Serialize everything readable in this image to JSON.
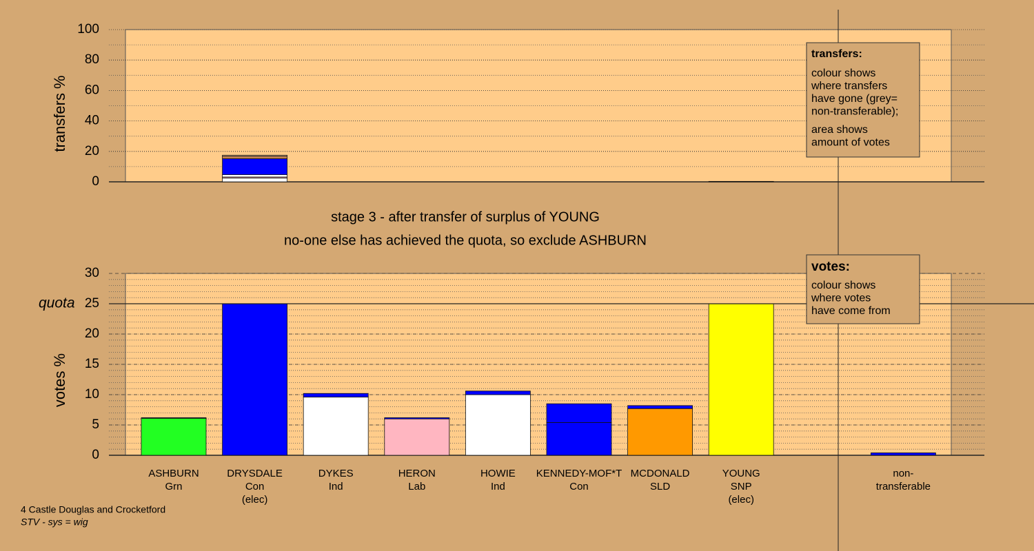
{
  "chart_data": [
    {
      "type": "stacked-bar",
      "ylabel": "transfers %",
      "ylim": [
        0,
        100
      ],
      "yticks": [
        0,
        20,
        40,
        60,
        80,
        100
      ],
      "minor_grid_step": 10,
      "grid": true,
      "series": [
        {
          "color": "#ffffff",
          "values": [
            null,
            2.5,
            null,
            null,
            null,
            null,
            null,
            0.3,
            null,
            null
          ]
        },
        {
          "color": "#ffb6c1",
          "values": [
            null,
            0.7,
            null,
            null,
            null,
            null,
            null,
            null,
            null,
            null
          ]
        },
        {
          "color": "#ffffff",
          "values": [
            null,
            1.5,
            null,
            null,
            null,
            null,
            null,
            null,
            null,
            null
          ]
        },
        {
          "color": "#0000ff",
          "values": [
            null,
            10.5,
            null,
            null,
            null,
            null,
            null,
            null,
            null,
            null
          ]
        },
        {
          "color": "#cc8855",
          "values": [
            null,
            1.5,
            null,
            null,
            null,
            null,
            null,
            null,
            null,
            null
          ]
        },
        {
          "color": "#c8a078",
          "values": [
            null,
            0.8,
            null,
            null,
            null,
            null,
            null,
            null,
            null,
            null
          ]
        }
      ],
      "annotation": {
        "title": "transfers:",
        "lines": [
          "colour shows",
          "where transfers",
          "have gone (grey=",
          "non-transferable);",
          "area shows",
          "amount of votes"
        ]
      }
    },
    {
      "type": "stacked-bar",
      "title": [
        "stage 3 - after transfer of surplus of YOUNG",
        "no-one else has achieved the quota, so exclude ASHBURN"
      ],
      "ylabel": "votes %",
      "ylim": [
        0,
        30
      ],
      "yticks": [
        0,
        5,
        10,
        15,
        20,
        25,
        30
      ],
      "minor_grid_step": 1,
      "grid": true,
      "quota": {
        "value": 25,
        "label": "quota"
      },
      "categories": [
        [
          "ASHBURN",
          "Grn"
        ],
        [
          "DRYSDALE",
          "Con",
          "(elec)"
        ],
        [
          "DYKES",
          "Ind"
        ],
        [
          "HERON",
          "Lab"
        ],
        [
          "HOWIE",
          "Ind"
        ],
        [
          "KENNEDY-MOF*T",
          "Con"
        ],
        [
          "MCDONALD",
          "SLD"
        ],
        [
          "YOUNG",
          "SNP",
          "(elec)"
        ],
        null,
        [
          "non-",
          "transferable"
        ]
      ],
      "series": [
        {
          "colors": [
            "#22ff22",
            "#0000ff",
            "#ffffff",
            "#ffb6c1",
            "#ffffff",
            "#0000ff",
            "#ff9900",
            "#ffff00",
            null,
            null
          ],
          "values": [
            6.1,
            25,
            9.6,
            6.0,
            10.0,
            5.4,
            7.7,
            25,
            null,
            null
          ]
        },
        {
          "color": "#0000ff",
          "values": [
            0.1,
            null,
            0.6,
            0.2,
            0.6,
            3.1,
            0.5,
            null,
            null,
            0.4
          ]
        }
      ],
      "annotation": {
        "title": "votes:",
        "lines": [
          "colour shows",
          "where votes",
          "have come from"
        ]
      }
    }
  ],
  "footer": {
    "ward": "4 Castle Douglas and Crocketford",
    "system": "STV - sys = wig"
  }
}
